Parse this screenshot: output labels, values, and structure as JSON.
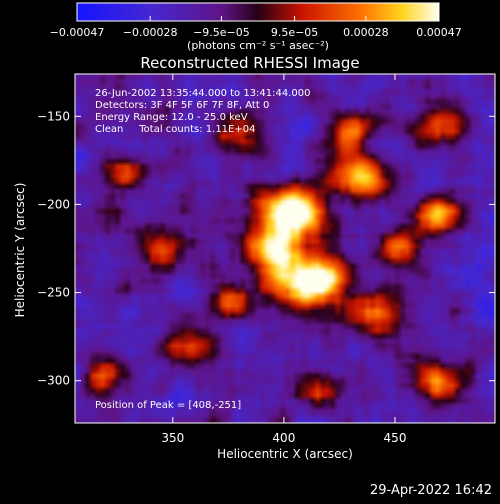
{
  "chart_data": {
    "type": "heatmap",
    "title": "Reconstructed RHESSI Image",
    "xlabel": "Heliocentric X (arcsec)",
    "ylabel": "Heliocentric Y (arcsec)",
    "xlim": [
      306,
      495
    ],
    "ylim": [
      -324,
      -126
    ],
    "x_ticks": [
      350,
      400,
      450
    ],
    "y_ticks": [
      -150,
      -200,
      -250,
      -300
    ],
    "y_tick_labels": [
      "−150",
      "−200",
      "−250",
      "−300"
    ],
    "colorbar": {
      "range": [
        -0.00047,
        0.00047
      ],
      "ticks": [
        -0.00047,
        -0.00028,
        -9.5e-05,
        9.5e-05,
        0.00028,
        0.00047
      ],
      "tick_labels": [
        "−0.00047",
        "−0.00028",
        "−9.5e−05",
        "9.5e−05",
        "0.00028",
        "0.00047"
      ],
      "units_label": "(photons cm⁻² s⁻¹ asec⁻²)"
    },
    "annotations": [
      "26-Jun-2002 13:35:44.000 to 13:41:44.000",
      "Detectors: 3F 4F 5F 6F 7F 8F, Att 0",
      "Energy Range: 12.0 - 25.0 keV",
      "Clean     Total counts: 1.11E+04"
    ],
    "peak_label": "Position of Peak = [408,-251]",
    "sources": [
      {
        "x": 403,
        "y": -205,
        "amp": 0.0008,
        "sigma": 10
      },
      {
        "x": 412,
        "y": -244,
        "amp": 0.00078,
        "sigma": 11
      },
      {
        "x": 395,
        "y": -228,
        "amp": 0.0005,
        "sigma": 9
      },
      {
        "x": 435,
        "y": -185,
        "amp": 0.0006,
        "sigma": 9
      },
      {
        "x": 470,
        "y": -205,
        "amp": 0.00045,
        "sigma": 8
      },
      {
        "x": 443,
        "y": -262,
        "amp": 0.00045,
        "sigma": 9
      },
      {
        "x": 380,
        "y": -157,
        "amp": 0.00035,
        "sigma": 8
      },
      {
        "x": 430,
        "y": -158,
        "amp": 0.0004,
        "sigma": 8
      },
      {
        "x": 470,
        "y": -155,
        "amp": 0.0004,
        "sigma": 8
      },
      {
        "x": 345,
        "y": -225,
        "amp": 0.0004,
        "sigma": 7
      },
      {
        "x": 330,
        "y": -182,
        "amp": 0.00035,
        "sigma": 7
      },
      {
        "x": 355,
        "y": -280,
        "amp": 0.0004,
        "sigma": 8
      },
      {
        "x": 320,
        "y": -300,
        "amp": 0.00035,
        "sigma": 8
      },
      {
        "x": 470,
        "y": -300,
        "amp": 0.0004,
        "sigma": 8
      },
      {
        "x": 415,
        "y": -305,
        "amp": 0.00035,
        "sigma": 8
      },
      {
        "x": 450,
        "y": -225,
        "amp": 0.0004,
        "sigma": 8
      },
      {
        "x": 375,
        "y": -255,
        "amp": 0.00035,
        "sigma": 7
      }
    ]
  },
  "footer": {
    "timestamp": "29-Apr-2022 16:42"
  },
  "colors": {
    "background": "#000000",
    "text": "#ffffff"
  }
}
